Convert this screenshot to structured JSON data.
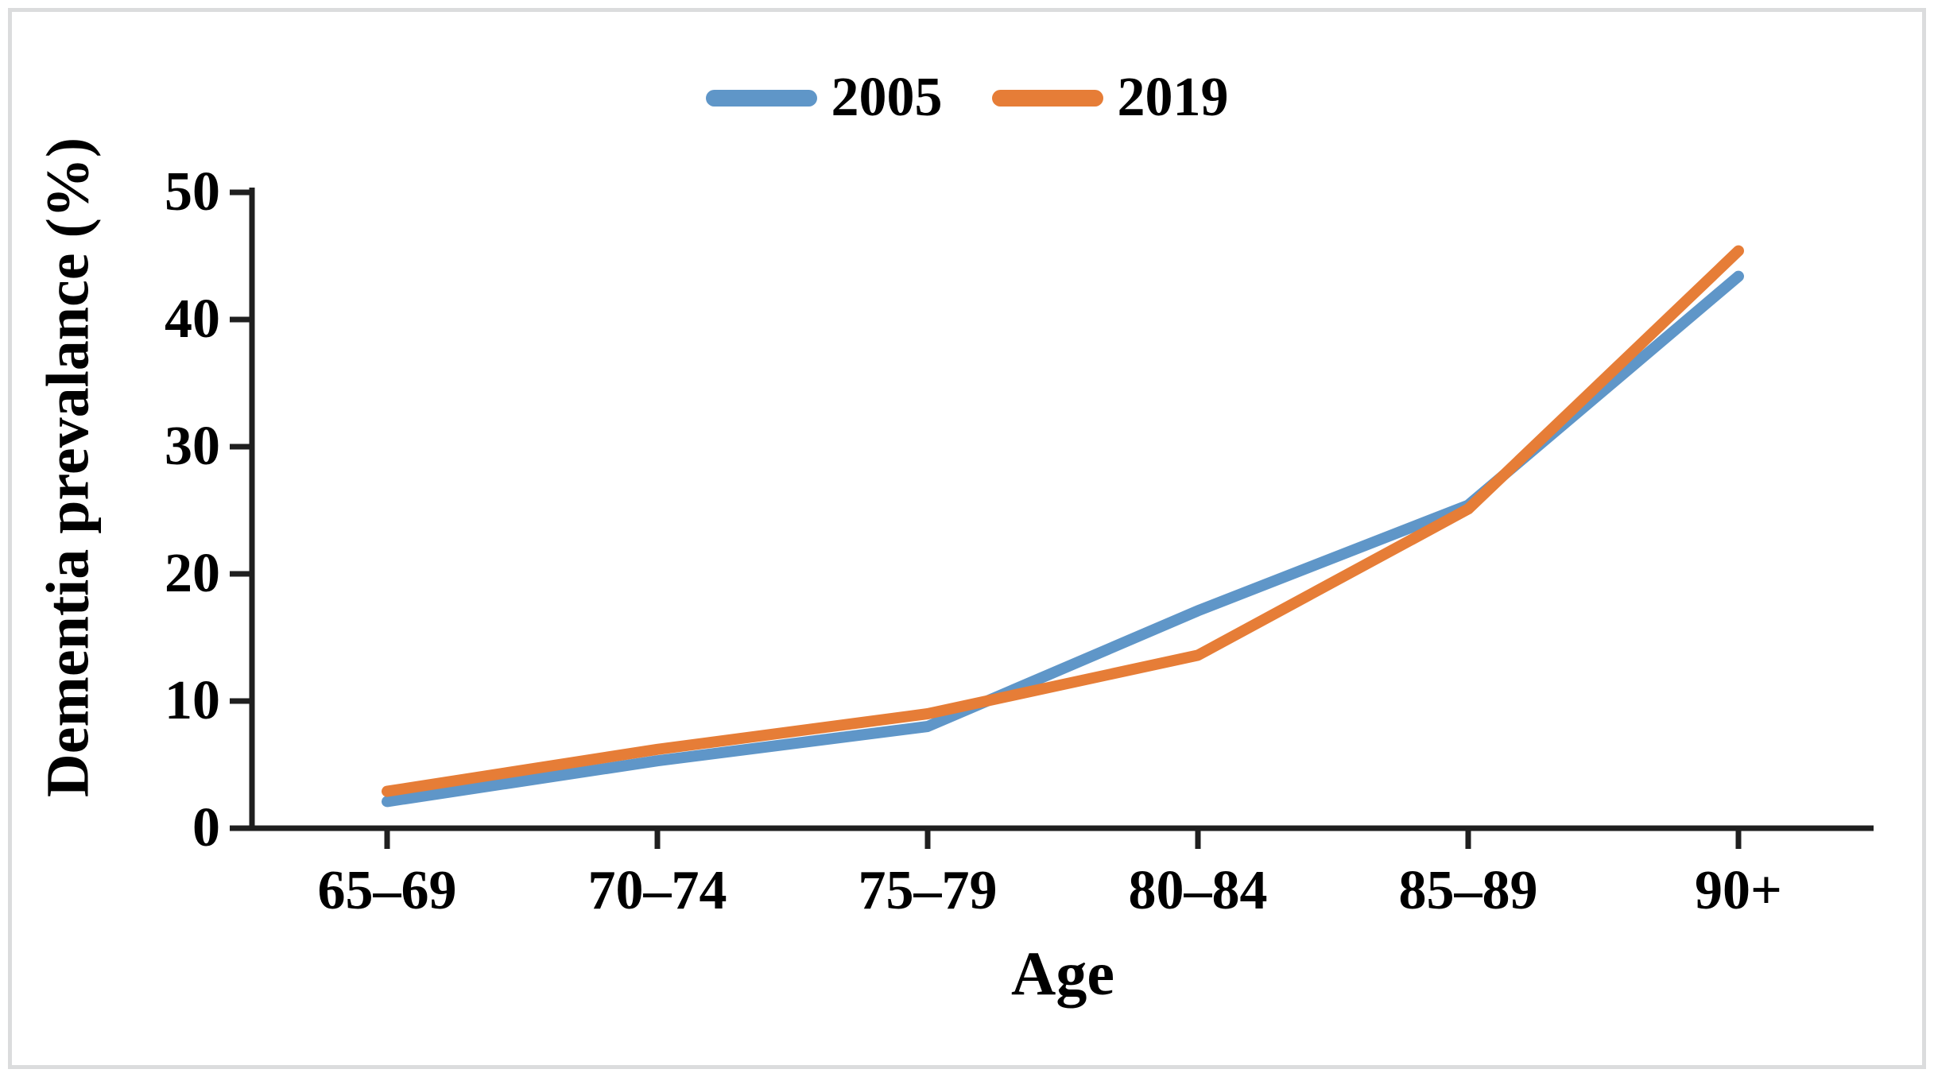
{
  "chart_data": {
    "type": "line",
    "title": "",
    "xlabel": "Age",
    "ylabel": "Dementia prevalance (%)",
    "categories": [
      "65–69",
      "70–74",
      "75–79",
      "80–84",
      "85–89",
      "90+"
    ],
    "series": [
      {
        "name": "2005",
        "color": "#5F96C8",
        "values": [
          2.1,
          5.3,
          8.0,
          17.1,
          25.4,
          43.4
        ]
      },
      {
        "name": "2019",
        "color": "#E67D37",
        "values": [
          2.9,
          6.2,
          9.0,
          13.6,
          25.1,
          45.4
        ]
      }
    ],
    "ylim": [
      0,
      50
    ],
    "yticks": [
      0,
      10,
      20,
      30,
      40,
      50
    ],
    "grid": false,
    "legend_position": "top-center",
    "axis_color": "#1F1F1F",
    "text_color": "#000000",
    "frame_color": "#DBDCDD"
  }
}
